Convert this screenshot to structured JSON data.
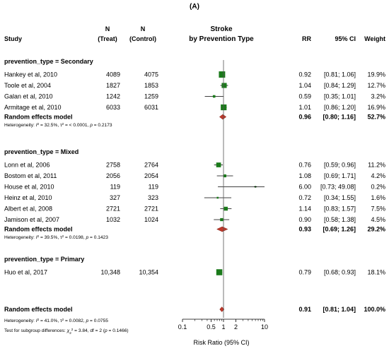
{
  "panel_label": "(A)",
  "chart_data": {
    "type": "forest",
    "headers": {
      "study": "Study",
      "n_treat": [
        "N",
        "(Treat)"
      ],
      "n_control": [
        "N",
        "(Control)"
      ],
      "plot": [
        "Stroke",
        "by Prevention Type"
      ],
      "rr": "RR",
      "ci": "95% CI",
      "weight": "Weight"
    },
    "x_axis": {
      "scale": "log",
      "ticks": [
        0.1,
        0.5,
        1,
        2,
        10
      ],
      "tick_labels": [
        "0.1",
        "0.5",
        "1",
        "2",
        "10"
      ],
      "range": [
        0.1,
        10
      ],
      "reference_line": 1,
      "label": "Risk Ratio (95% CI)"
    },
    "subgroups": [
      {
        "title": "prevention_type = Secondary",
        "studies": [
          {
            "name": "Hankey et al, 2010",
            "n_treat": "4089",
            "n_control": "4075",
            "rr": 0.92,
            "lower": 0.81,
            "upper": 1.06,
            "rr_text": "0.92",
            "ci_text": "[0.81;  1.06]",
            "weight_text": "19.9%",
            "weight": 19.9
          },
          {
            "name": "Toole et al, 2004",
            "n_treat": "1827",
            "n_control": "1853",
            "rr": 1.04,
            "lower": 0.84,
            "upper": 1.29,
            "rr_text": "1.04",
            "ci_text": "[0.84;  1.29]",
            "weight_text": "12.7%",
            "weight": 12.7
          },
          {
            "name": "Galan et al, 2010",
            "n_treat": "1242",
            "n_control": "1259",
            "rr": 0.59,
            "lower": 0.35,
            "upper": 1.01,
            "rr_text": "0.59",
            "ci_text": "[0.35;  1.01]",
            "weight_text": "3.2%",
            "weight": 3.2
          },
          {
            "name": "Armitage et al, 2010",
            "n_treat": "6033",
            "n_control": "6031",
            "rr": 1.01,
            "lower": 0.86,
            "upper": 1.2,
            "rr_text": "1.01",
            "ci_text": "[0.86;  1.20]",
            "weight_text": "16.9%",
            "weight": 16.9
          }
        ],
        "summary": {
          "label": "Random effects model",
          "rr": 0.96,
          "lower": 0.8,
          "upper": 1.16,
          "rr_text": "0.96",
          "ci_text": "[0.80;  1.16]",
          "weight_text": "52.7%"
        },
        "heterogeneity": {
          "prefix": "Heterogeneity: ",
          "i2": "I",
          "i2_sup": "2",
          "i2_rest": " = 32.5%, ",
          "tau": "τ",
          "tau_sup": "2",
          "tau_rest": " = < 0.0001, ",
          "p_letter": "p",
          "p_rest": " = 0.2173"
        }
      },
      {
        "title": "prevention_type = Mixed",
        "studies": [
          {
            "name": "Lonn et al, 2006",
            "n_treat": "2758",
            "n_control": "2764",
            "rr": 0.76,
            "lower": 0.59,
            "upper": 0.96,
            "rr_text": "0.76",
            "ci_text": "[0.59;  0.96]",
            "weight_text": "11.2%",
            "weight": 11.2
          },
          {
            "name": "Bostom et al, 2011",
            "n_treat": "2056",
            "n_control": "2054",
            "rr": 1.08,
            "lower": 0.69,
            "upper": 1.71,
            "rr_text": "1.08",
            "ci_text": "[0.69;  1.71]",
            "weight_text": "4.2%",
            "weight": 4.2
          },
          {
            "name": "House et al, 2010",
            "n_treat": "119",
            "n_control": "119",
            "rr": 6.0,
            "lower": 0.73,
            "upper": 49.08,
            "rr_text": "6.00",
            "ci_text": "[0.73; 49.08]",
            "weight_text": "0.2%",
            "weight": 0.2
          },
          {
            "name": "Heinz et al, 2010",
            "n_treat": "327",
            "n_control": "323",
            "rr": 0.72,
            "lower": 0.34,
            "upper": 1.55,
            "rr_text": "0.72",
            "ci_text": "[0.34;  1.55]",
            "weight_text": "1.6%",
            "weight": 1.6
          },
          {
            "name": "Albert et al, 2008",
            "n_treat": "2721",
            "n_control": "2721",
            "rr": 1.14,
            "lower": 0.83,
            "upper": 1.57,
            "rr_text": "1.14",
            "ci_text": "[0.83;  1.57]",
            "weight_text": "7.5%",
            "weight": 7.5
          },
          {
            "name": "Jamison et al, 2007",
            "n_treat": "1032",
            "n_control": "1024",
            "rr": 0.9,
            "lower": 0.58,
            "upper": 1.38,
            "rr_text": "0.90",
            "ci_text": "[0.58;  1.38]",
            "weight_text": "4.5%",
            "weight": 4.5
          }
        ],
        "summary": {
          "label": "Random effects model",
          "rr": 0.93,
          "lower": 0.69,
          "upper": 1.26,
          "rr_text": "0.93",
          "ci_text": "[0.69;  1.26]",
          "weight_text": "29.2%"
        },
        "heterogeneity": {
          "prefix": "Heterogeneity: ",
          "i2": "I",
          "i2_sup": "2",
          "i2_rest": " = 39.5%, ",
          "tau": "τ",
          "tau_sup": "2",
          "tau_rest": " = 0.0198, ",
          "p_letter": "p",
          "p_rest": " = 0.1423"
        }
      },
      {
        "title": "prevention_type = Primary",
        "studies": [
          {
            "name": "Huo et al, 2017",
            "n_treat": "10,348",
            "n_control": "10,354",
            "rr": 0.79,
            "lower": 0.68,
            "upper": 0.93,
            "rr_text": "0.79",
            "ci_text": "[0.68;  0.93]",
            "weight_text": "18.1%",
            "weight": 18.1
          }
        ]
      }
    ],
    "overall": {
      "label": "Random effects model",
      "rr": 0.91,
      "lower": 0.81,
      "upper": 1.04,
      "rr_text": "0.91",
      "ci_text": "[0.81;  1.04]",
      "weight_text": "100.0%",
      "heterogeneity": {
        "prefix": "Heterogeneity: ",
        "i2": "I",
        "i2_sup": "2",
        "i2_rest": " = 41.0%, ",
        "tau": "τ",
        "tau_sup": "2",
        "tau_rest": " = 0.0082, ",
        "p_letter": "p",
        "p_rest": " = 0.0755"
      },
      "subgroup_test": {
        "prefix": "Test for subgroup differences: ",
        "chi": "χ",
        "chi_sub": "2",
        "chi_sup": "2",
        "chi_rest": " = 3.84, df = 2 (",
        "p_letter": "p",
        "p_rest": " = 0.1466)"
      }
    },
    "colors": {
      "square": "#1a7a1a",
      "diamond": "#c0392b",
      "line": "#000000",
      "refline": "#555555"
    }
  }
}
